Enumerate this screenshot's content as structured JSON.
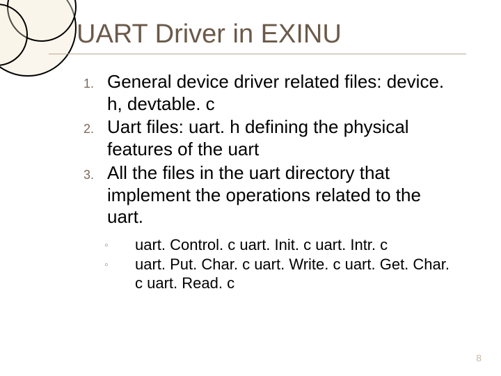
{
  "slide": {
    "title": "UART Driver in EXINU",
    "page_number": "8",
    "colors": {
      "title_color": "#6b5a4a",
      "body_color": "#000000",
      "marker_color": "#7a6a58",
      "sub_marker_color": "#9a8a72",
      "rule_color": "#b8a890",
      "page_num_color": "#c8b9a0",
      "decoration_ring": "#e8dfcf",
      "background": "#ffffff"
    },
    "typography": {
      "title_fontsize": 38,
      "body_fontsize": 26,
      "marker_fontsize": 18,
      "sub_fontsize": 22,
      "page_num_fontsize": 14,
      "font_family": "Arial"
    },
    "numbered_items": [
      {
        "marker": "1.",
        "text": "General device driver related files: device. h, devtable. c"
      },
      {
        "marker": "2.",
        "text": "Uart files: uart. h defining the physical features of the uart"
      },
      {
        "marker": "3.",
        "text": "All the files in the uart directory that implement the operations related to the uart."
      }
    ],
    "sub_items": [
      {
        "marker": "◦",
        "text": "uart. Control. c   uart. Init. c  uart. Intr. c"
      },
      {
        "marker": "◦",
        "text": "uart. Put. Char. c   uart. Write. c  uart. Get. Char. c  uart. Read. c"
      }
    ]
  }
}
